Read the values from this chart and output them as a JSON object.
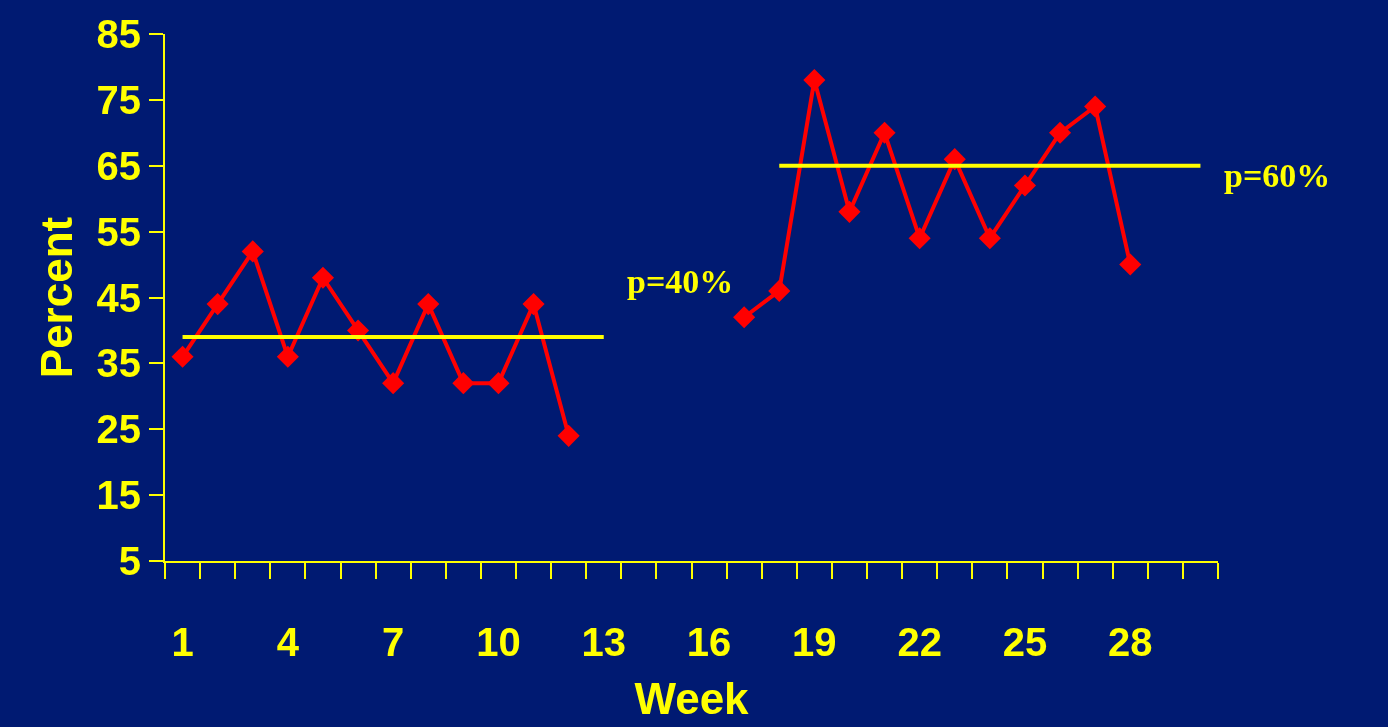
{
  "chart_data": {
    "type": "line",
    "xlabel": "Week",
    "ylabel": "Percent",
    "categories": [
      "1",
      null,
      null,
      "4",
      null,
      null,
      "7",
      null,
      null,
      "10",
      null,
      null,
      "13",
      null,
      null,
      "16",
      null,
      null,
      "19",
      null,
      null,
      "22",
      null,
      null,
      "25",
      null,
      null,
      "28",
      null,
      null
    ],
    "series": [
      {
        "color": "#ff0000",
        "marker": "diamond",
        "values": [
          36,
          44,
          52,
          36,
          48,
          40,
          32,
          44,
          32,
          32,
          44,
          24,
          null,
          null,
          null,
          null,
          42,
          46,
          78,
          58,
          70,
          54,
          66,
          54,
          62,
          70,
          74,
          50,
          null,
          null
        ]
      },
      {
        "name": "p=40%",
        "color": "#ffff00",
        "marker": "none",
        "values": [
          39,
          39,
          39,
          39,
          39,
          39,
          39,
          39,
          39,
          39,
          39,
          39,
          39,
          null,
          null,
          null,
          null,
          null,
          null,
          null,
          null,
          null,
          null,
          null,
          null,
          null,
          null,
          null,
          null,
          null
        ]
      },
      {
        "name": "p=60%",
        "color": "#ffff00",
        "marker": "none",
        "values": [
          null,
          null,
          null,
          null,
          null,
          null,
          null,
          null,
          null,
          null,
          null,
          null,
          null,
          null,
          null,
          null,
          null,
          65,
          65,
          65,
          65,
          65,
          65,
          65,
          65,
          65,
          65,
          65,
          65,
          65
        ]
      }
    ],
    "ylim": [
      5,
      85
    ],
    "yticks": [
      5,
      15,
      25,
      35,
      45,
      55,
      65,
      75,
      85
    ],
    "grid": false,
    "legend": false
  }
}
